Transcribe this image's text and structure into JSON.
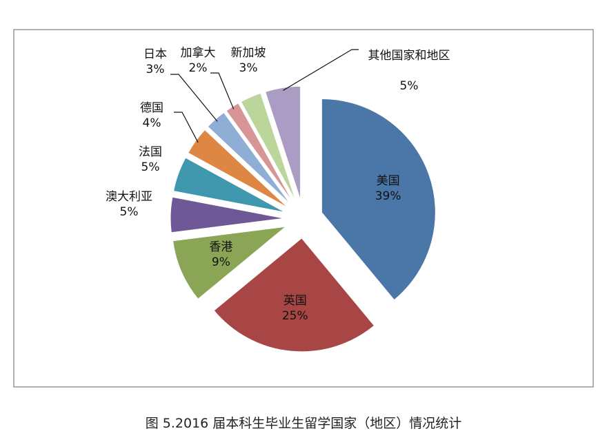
{
  "chart_data": {
    "type": "pie",
    "title": "图 5.2016 届本科生毕业生留学国家（地区）情况统计",
    "categories": [
      "美国",
      "英国",
      "香港",
      "澳大利亚",
      "法国",
      "德国",
      "日本",
      "加拿大",
      "新加坡",
      "其他国家和地区"
    ],
    "values": [
      39,
      25,
      9,
      5,
      5,
      4,
      3,
      2,
      3,
      5
    ],
    "value_labels": [
      "39%",
      "25%",
      "9%",
      "5%",
      "5%",
      "4%",
      "3%",
      "2%",
      "3%",
      "5%"
    ],
    "colors": [
      "#4a76a8",
      "#a84646",
      "#8aa555",
      "#6e5895",
      "#3f98ad",
      "#de8744",
      "#8faed6",
      "#d89595",
      "#bcd59a",
      "#ab9cc4"
    ]
  }
}
